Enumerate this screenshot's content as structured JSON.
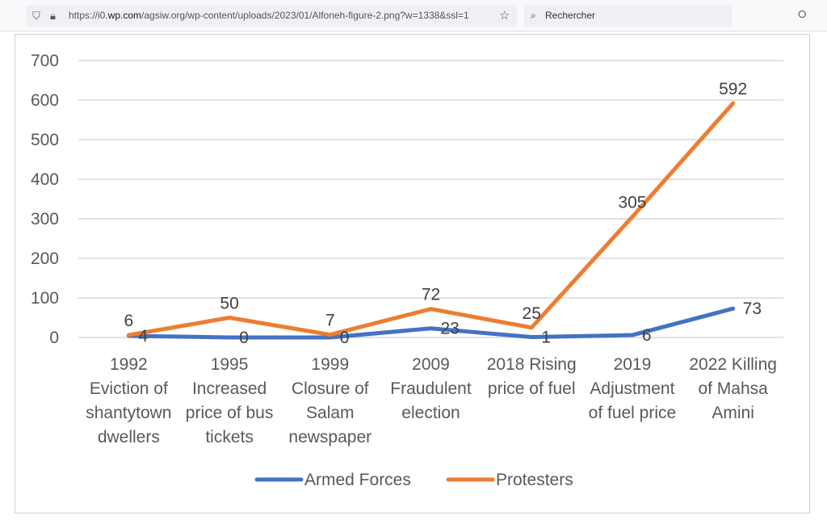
{
  "browser": {
    "url_prefix": "https://i0.",
    "url_domain": "wp.com",
    "url_rest": "/agsiw.org/wp-content/uploads/2023/01/Alfoneh-figure-2.png?w=1338&ssl=1",
    "search_placeholder": "Rechercher",
    "icons": [
      "shield-icon",
      "lock-icon",
      "star-icon",
      "search-icon",
      "pocket-icon"
    ]
  },
  "chart_data": {
    "type": "line",
    "title": "",
    "xlabel": "",
    "ylabel": "",
    "ylim": [
      0,
      700
    ],
    "yticks": [
      0,
      100,
      200,
      300,
      400,
      500,
      600,
      700
    ],
    "grid": true,
    "legend": "bottom",
    "categories": [
      [
        "1992",
        "Eviction of",
        "shantytown",
        "dwellers"
      ],
      [
        "1995",
        "Increased",
        "price of bus",
        "tickets"
      ],
      [
        "1999",
        "Closure of",
        "Salam",
        "newspaper"
      ],
      [
        "2009",
        "Fraudulent",
        "election"
      ],
      [
        "2018 Rising",
        "price of fuel"
      ],
      [
        "2019",
        "Adjustment",
        "of fuel price"
      ],
      [
        "2022 Killing",
        "of Mahsa",
        "Amini"
      ]
    ],
    "series": [
      {
        "name": "Armed Forces",
        "color": "#4472c4",
        "values": [
          4,
          0,
          0,
          23,
          1,
          6,
          73
        ]
      },
      {
        "name": "Protesters",
        "color": "#ed7d31",
        "values": [
          6,
          50,
          7,
          72,
          25,
          305,
          592
        ]
      }
    ]
  }
}
